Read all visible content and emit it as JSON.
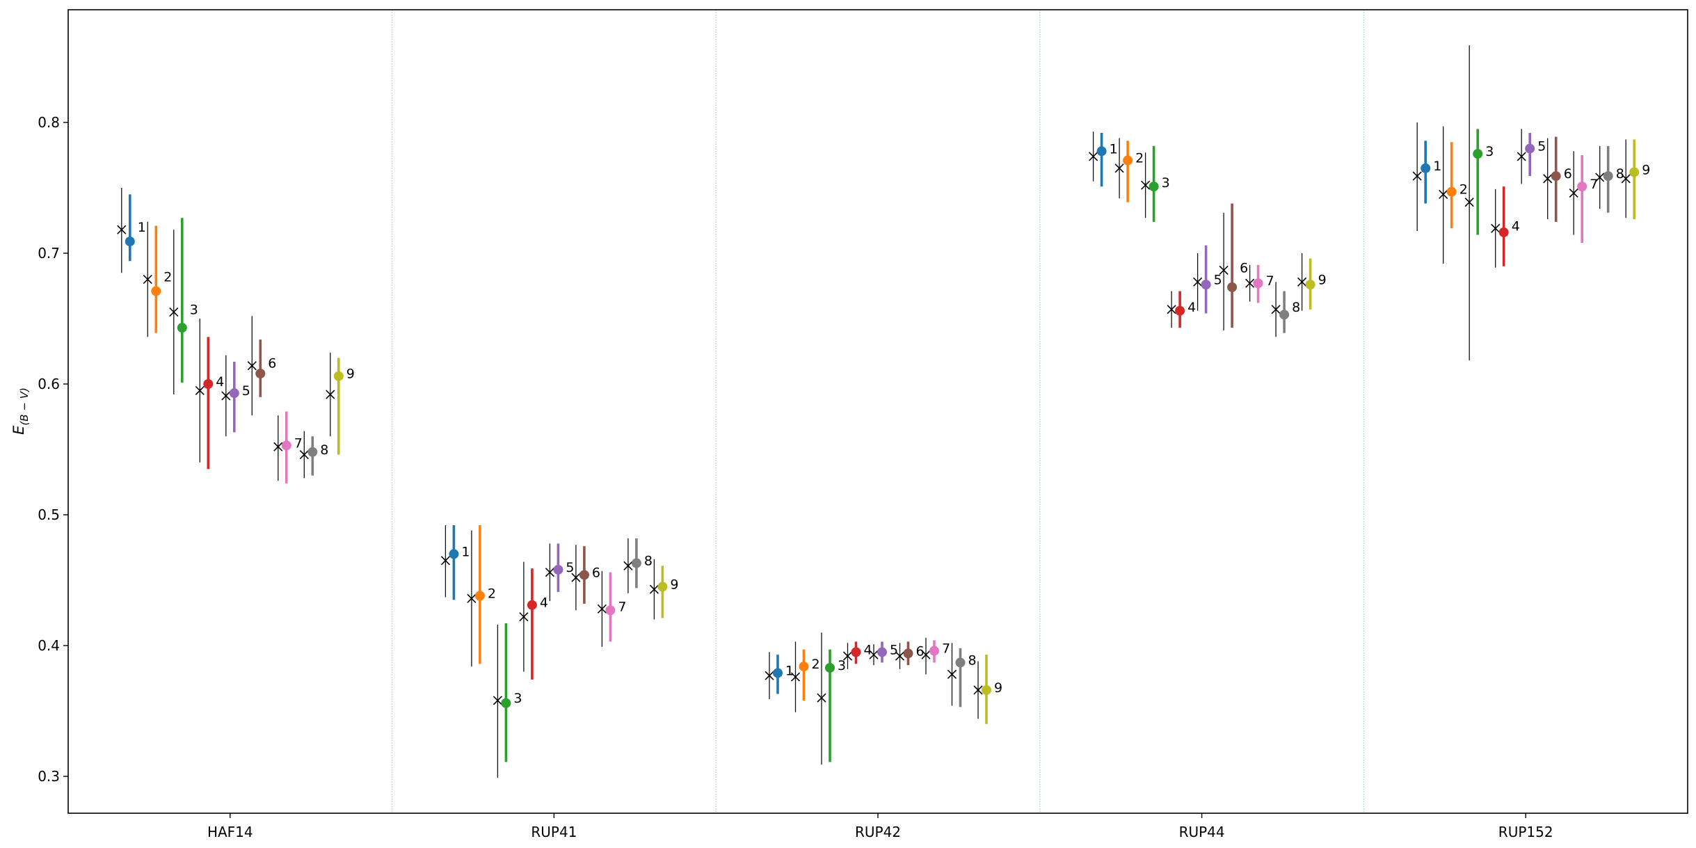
{
  "chart_data": {
    "type": "scatter",
    "ylabel_main": "E",
    "ylabel_sub": "(B − V)",
    "ylim": [
      0.27,
      0.885
    ],
    "yticks": [
      "0.3",
      "0.4",
      "0.5",
      "0.6",
      "0.7",
      "0.8"
    ],
    "groups": [
      "HAF14",
      "RUP41",
      "RUP42",
      "RUP44",
      "RUP152"
    ],
    "colors": [
      "#1f77b4",
      "#ff7f0e",
      "#2ca02c",
      "#d62728",
      "#9467bd",
      "#8c564b",
      "#e377c2",
      "#7f7f7f",
      "#bcbd22"
    ],
    "point_labels": [
      "1",
      "2",
      "3",
      "4",
      "5",
      "6",
      "7",
      "8",
      "9"
    ],
    "series": [
      {
        "group": "HAF14",
        "cross": [
          [
            0.718,
            0.685,
            0.75
          ],
          [
            0.68,
            0.636,
            0.724
          ],
          [
            0.655,
            0.592,
            0.718
          ],
          [
            0.595,
            0.54,
            0.65
          ],
          [
            0.591,
            0.56,
            0.622
          ],
          [
            0.614,
            0.576,
            0.652
          ],
          [
            0.552,
            0.526,
            0.576
          ],
          [
            0.546,
            0.528,
            0.564
          ],
          [
            0.592,
            0.56,
            0.624
          ]
        ],
        "dot": [
          [
            0.709,
            0.694,
            0.745
          ],
          [
            0.671,
            0.639,
            0.721
          ],
          [
            0.643,
            0.601,
            0.727
          ],
          [
            0.6,
            0.535,
            0.636
          ],
          [
            0.593,
            0.563,
            0.617
          ],
          [
            0.608,
            0.59,
            0.634
          ],
          [
            0.553,
            0.524,
            0.579
          ],
          [
            0.548,
            0.53,
            0.56
          ],
          [
            0.606,
            0.546,
            0.62
          ]
        ]
      },
      {
        "group": "RUP41",
        "cross": [
          [
            0.465,
            0.437,
            0.492
          ],
          [
            0.436,
            0.384,
            0.488
          ],
          [
            0.358,
            0.299,
            0.416
          ],
          [
            0.422,
            0.38,
            0.464
          ],
          [
            0.456,
            0.434,
            0.478
          ],
          [
            0.452,
            0.427,
            0.477
          ],
          [
            0.428,
            0.399,
            0.457
          ],
          [
            0.461,
            0.44,
            0.482
          ],
          [
            0.443,
            0.42,
            0.466
          ]
        ],
        "dot": [
          [
            0.47,
            0.435,
            0.492
          ],
          [
            0.438,
            0.386,
            0.492
          ],
          [
            0.356,
            0.311,
            0.417
          ],
          [
            0.431,
            0.374,
            0.459
          ],
          [
            0.458,
            0.441,
            0.478
          ],
          [
            0.454,
            0.432,
            0.476
          ],
          [
            0.427,
            0.403,
            0.456
          ],
          [
            0.463,
            0.444,
            0.482
          ],
          [
            0.445,
            0.421,
            0.461
          ]
        ]
      },
      {
        "group": "RUP42",
        "cross": [
          [
            0.377,
            0.359,
            0.395
          ],
          [
            0.376,
            0.349,
            0.403
          ],
          [
            0.36,
            0.309,
            0.41
          ],
          [
            0.392,
            0.382,
            0.402
          ],
          [
            0.393,
            0.385,
            0.401
          ],
          [
            0.392,
            0.382,
            0.402
          ],
          [
            0.393,
            0.378,
            0.406
          ],
          [
            0.378,
            0.354,
            0.402
          ],
          [
            0.366,
            0.344,
            0.388
          ]
        ],
        "dot": [
          [
            0.379,
            0.363,
            0.393
          ],
          [
            0.384,
            0.358,
            0.397
          ],
          [
            0.383,
            0.311,
            0.397
          ],
          [
            0.395,
            0.386,
            0.403
          ],
          [
            0.395,
            0.387,
            0.403
          ],
          [
            0.394,
            0.385,
            0.403
          ],
          [
            0.396,
            0.387,
            0.404
          ],
          [
            0.387,
            0.353,
            0.398
          ],
          [
            0.366,
            0.34,
            0.393
          ]
        ]
      },
      {
        "group": "RUP44",
        "cross": [
          [
            0.774,
            0.755,
            0.793
          ],
          [
            0.765,
            0.742,
            0.788
          ],
          [
            0.752,
            0.727,
            0.777
          ],
          [
            0.657,
            0.643,
            0.671
          ],
          [
            0.678,
            0.656,
            0.7
          ],
          [
            0.687,
            0.641,
            0.731
          ],
          [
            0.677,
            0.663,
            0.691
          ],
          [
            0.657,
            0.636,
            0.678
          ],
          [
            0.678,
            0.656,
            0.7
          ]
        ],
        "dot": [
          [
            0.778,
            0.751,
            0.792
          ],
          [
            0.771,
            0.739,
            0.786
          ],
          [
            0.751,
            0.724,
            0.782
          ],
          [
            0.656,
            0.643,
            0.671
          ],
          [
            0.676,
            0.654,
            0.706
          ],
          [
            0.674,
            0.643,
            0.738
          ],
          [
            0.677,
            0.662,
            0.691
          ],
          [
            0.653,
            0.639,
            0.671
          ],
          [
            0.676,
            0.657,
            0.696
          ]
        ]
      },
      {
        "group": "RUP152",
        "cross": [
          [
            0.759,
            0.717,
            0.8
          ],
          [
            0.745,
            0.692,
            0.797
          ],
          [
            0.739,
            0.618,
            0.859
          ],
          [
            0.719,
            0.689,
            0.749
          ],
          [
            0.774,
            0.753,
            0.795
          ],
          [
            0.757,
            0.726,
            0.788
          ],
          [
            0.746,
            0.714,
            0.778
          ],
          [
            0.758,
            0.734,
            0.782
          ],
          [
            0.757,
            0.727,
            0.787
          ]
        ],
        "dot": [
          [
            0.765,
            0.738,
            0.786
          ],
          [
            0.747,
            0.719,
            0.785
          ],
          [
            0.776,
            0.714,
            0.795
          ],
          [
            0.716,
            0.69,
            0.751
          ],
          [
            0.78,
            0.759,
            0.792
          ],
          [
            0.759,
            0.724,
            0.789
          ],
          [
            0.751,
            0.708,
            0.775
          ],
          [
            0.759,
            0.731,
            0.782
          ],
          [
            0.762,
            0.726,
            0.787
          ]
        ]
      }
    ]
  }
}
